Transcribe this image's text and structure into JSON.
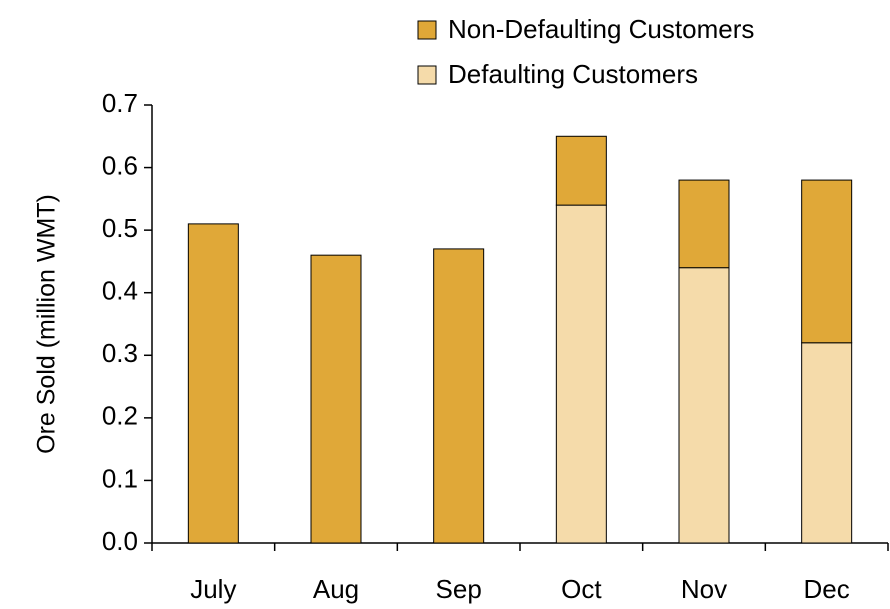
{
  "chart_data": {
    "type": "stacked_bar",
    "y_label": "Ore Sold (million WMT)",
    "categories": [
      "July",
      "Aug",
      "Sep",
      "Oct",
      "Nov",
      "Dec"
    ],
    "series": [
      {
        "name": "Defaulting Customers",
        "color": "#f5dbaa",
        "values": [
          0,
          0,
          0,
          0.54,
          0.44,
          0.32
        ]
      },
      {
        "name": "Non-Defaulting Customers",
        "color": "#e0a838",
        "values": [
          0.51,
          0.46,
          0.47,
          0.11,
          0.14,
          0.26
        ]
      }
    ],
    "ylim": [
      0,
      0.7
    ],
    "yticks": [
      {
        "value": 0,
        "label": "0.0"
      },
      0.1,
      0.2,
      0.3,
      0.4,
      0.5,
      0.6,
      0.7
    ],
    "grid": false
  }
}
